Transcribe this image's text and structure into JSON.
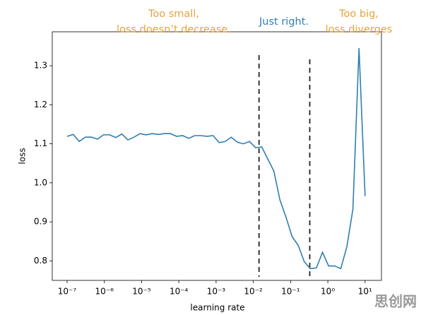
{
  "chart_data": {
    "type": "line",
    "xlabel": "learning rate",
    "ylabel": "loss",
    "xscale": "log",
    "x": [
      1e-07,
      1.46e-07,
      2.12e-07,
      3.09e-07,
      4.5e-07,
      6.55e-07,
      9.54e-07,
      1.39e-06,
      2.02e-06,
      2.95e-06,
      4.29e-06,
      6.25e-06,
      9.1e-06,
      1.33e-05,
      1.93e-05,
      2.81e-05,
      4.09e-05,
      5.96e-05,
      8.69e-05,
      0.000126,
      0.000184,
      0.000268,
      0.000391,
      0.000569,
      0.000829,
      0.00121,
      0.00176,
      0.00256,
      0.00373,
      0.00543,
      0.00791,
      0.0115,
      0.0168,
      0.0244,
      0.0356,
      0.0518,
      0.0754,
      0.11,
      0.16,
      0.233,
      0.339,
      0.494,
      0.72,
      1.05,
      1.53,
      2.22,
      3.24,
      4.71,
      6.87,
      10
    ],
    "series": [
      {
        "color": "#2f7eb0",
        "values": [
          1.119,
          1.124,
          1.106,
          1.117,
          1.117,
          1.112,
          1.123,
          1.123,
          1.116,
          1.125,
          1.11,
          1.117,
          1.126,
          1.123,
          1.126,
          1.124,
          1.126,
          1.126,
          1.119,
          1.121,
          1.114,
          1.121,
          1.121,
          1.119,
          1.121,
          1.103,
          1.106,
          1.117,
          1.104,
          1.1,
          1.106,
          1.09,
          1.092,
          1.061,
          1.03,
          0.956,
          0.912,
          0.862,
          0.84,
          0.798,
          0.78,
          0.782,
          0.822,
          0.787,
          0.787,
          0.78,
          0.836,
          0.932,
          1.345,
          0.966
        ]
      }
    ],
    "xlim": [
      4e-08,
      27.5
    ],
    "ylim": [
      0.75,
      1.387
    ],
    "xticks": [
      {
        "value": 1e-07,
        "label": "10⁻⁷"
      },
      {
        "value": 1e-06,
        "label": "10⁻⁶"
      },
      {
        "value": 1e-05,
        "label": "10⁻⁵"
      },
      {
        "value": 0.0001,
        "label": "10⁻⁴"
      },
      {
        "value": 0.001,
        "label": "10⁻³"
      },
      {
        "value": 0.01,
        "label": "10⁻²"
      },
      {
        "value": 0.1,
        "label": "10⁻¹"
      },
      {
        "value": 1,
        "label": "10⁰"
      },
      {
        "value": 10,
        "label": "10¹"
      }
    ],
    "yticks": [
      0.8,
      0.9,
      {
        "value": 1,
        "label": "1.0"
      },
      1.1,
      1.2,
      1.3
    ],
    "vlines": [
      0.0142,
      0.327
    ],
    "vline_color": "#222222",
    "annotations": [
      {
        "lines": [
          "Too small,",
          "loss doesn’t decrease."
        ],
        "color": "#e8a33c"
      },
      {
        "lines": [
          "Just right."
        ],
        "color": "#2f7eb0"
      },
      {
        "lines": [
          "Too big,",
          "loss diverges"
        ],
        "color": "#e8a33c"
      }
    ],
    "watermark": "思创网"
  }
}
